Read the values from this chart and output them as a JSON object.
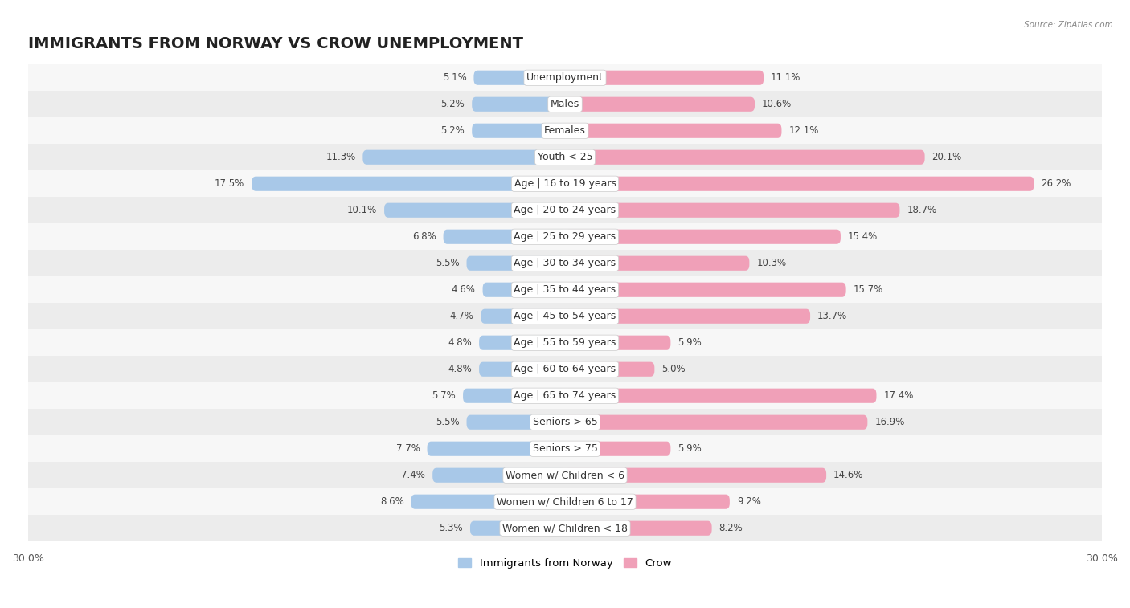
{
  "title": "IMMIGRANTS FROM NORWAY VS CROW UNEMPLOYMENT",
  "source": "Source: ZipAtlas.com",
  "categories": [
    "Unemployment",
    "Males",
    "Females",
    "Youth < 25",
    "Age | 16 to 19 years",
    "Age | 20 to 24 years",
    "Age | 25 to 29 years",
    "Age | 30 to 34 years",
    "Age | 35 to 44 years",
    "Age | 45 to 54 years",
    "Age | 55 to 59 years",
    "Age | 60 to 64 years",
    "Age | 65 to 74 years",
    "Seniors > 65",
    "Seniors > 75",
    "Women w/ Children < 6",
    "Women w/ Children 6 to 17",
    "Women w/ Children < 18"
  ],
  "norway_values": [
    5.1,
    5.2,
    5.2,
    11.3,
    17.5,
    10.1,
    6.8,
    5.5,
    4.6,
    4.7,
    4.8,
    4.8,
    5.7,
    5.5,
    7.7,
    7.4,
    8.6,
    5.3
  ],
  "crow_values": [
    11.1,
    10.6,
    12.1,
    20.1,
    26.2,
    18.7,
    15.4,
    10.3,
    15.7,
    13.7,
    5.9,
    5.0,
    17.4,
    16.9,
    5.9,
    14.6,
    9.2,
    8.2
  ],
  "norway_color": "#a8c8e8",
  "crow_color": "#f0a0b8",
  "bg_color": "#ffffff",
  "row_light": "#f7f7f7",
  "row_dark": "#ececec",
  "axis_max": 30.0,
  "legend_norway": "Immigrants from Norway",
  "legend_crow": "Crow",
  "title_fontsize": 14,
  "label_fontsize": 9,
  "value_fontsize": 8.5
}
